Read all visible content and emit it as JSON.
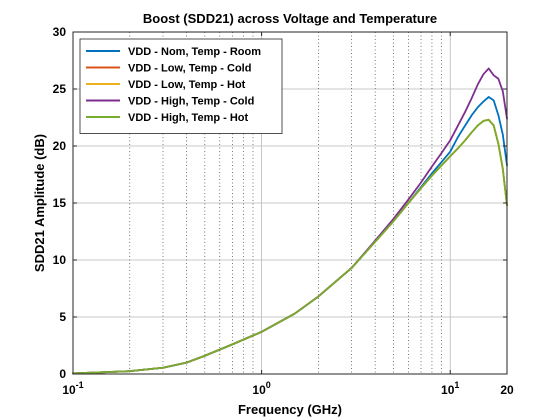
{
  "chart_data": {
    "type": "line",
    "title": "Boost (SDD21) across Voltage and Temperature",
    "xlabel": "Frequency (GHz)",
    "ylabel": "SDD21 Amplitude (dB)",
    "xscale": "log",
    "xlim": [
      0.1,
      20
    ],
    "ylim": [
      0,
      30
    ],
    "x_ticks": [
      {
        "value": 0.1,
        "base": "10",
        "exp": "-1"
      },
      {
        "value": 1,
        "base": "10",
        "exp": "0"
      },
      {
        "value": 10,
        "base": "10",
        "exp": "1"
      },
      {
        "value": 20,
        "base": "20",
        "exp": ""
      }
    ],
    "y_ticks": [
      0,
      5,
      10,
      15,
      20,
      25,
      30
    ],
    "grid": "x-minor dotted, y-major solid",
    "legend_position": "top-left",
    "x": [
      0.1,
      0.2,
      0.3,
      0.4,
      0.5,
      0.7,
      1,
      1.5,
      2,
      3,
      4,
      5,
      6,
      7,
      8,
      9,
      10,
      11,
      12,
      13,
      14,
      15,
      16,
      17,
      18,
      19,
      20
    ],
    "series": [
      {
        "name": "VDD - Nom, Temp - Room",
        "color": "#0072bd",
        "values": [
          0.05,
          0.25,
          0.55,
          1.0,
          1.6,
          2.6,
          3.7,
          5.3,
          6.8,
          9.3,
          11.6,
          13.4,
          15.0,
          16.4,
          17.6,
          18.6,
          19.5,
          20.8,
          21.8,
          22.7,
          23.4,
          23.9,
          24.3,
          24.0,
          22.7,
          21.0,
          18.3
        ]
      },
      {
        "name": "VDD - Low, Temp - Cold",
        "color": "#d95319",
        "values": [
          0.05,
          0.25,
          0.55,
          1.0,
          1.6,
          2.6,
          3.7,
          5.3,
          6.8,
          9.3,
          11.6,
          13.4,
          15.0,
          16.3,
          17.4,
          18.3,
          19.1,
          19.8,
          20.5,
          21.2,
          21.8,
          22.2,
          22.3,
          21.8,
          20.2,
          18.0,
          14.8
        ]
      },
      {
        "name": "VDD - Low, Temp - Hot",
        "color": "#edb120",
        "values": [
          0.05,
          0.25,
          0.55,
          1.0,
          1.6,
          2.6,
          3.7,
          5.3,
          6.8,
          9.3,
          11.6,
          13.4,
          15.0,
          16.3,
          17.4,
          18.3,
          19.1,
          19.8,
          20.5,
          21.2,
          21.8,
          22.2,
          22.3,
          21.8,
          20.2,
          18.0,
          14.8
        ]
      },
      {
        "name": "VDD - High, Temp - Cold",
        "color": "#7e2f8e",
        "values": [
          0.05,
          0.25,
          0.55,
          1.0,
          1.6,
          2.6,
          3.7,
          5.3,
          6.8,
          9.3,
          11.7,
          13.6,
          15.3,
          16.8,
          18.2,
          19.4,
          20.5,
          21.8,
          23.0,
          24.2,
          25.4,
          26.3,
          26.8,
          26.2,
          25.9,
          24.8,
          22.4
        ]
      },
      {
        "name": "VDD - High, Temp - Hot",
        "color": "#77ac30",
        "values": [
          0.05,
          0.25,
          0.55,
          1.0,
          1.6,
          2.6,
          3.7,
          5.3,
          6.8,
          9.3,
          11.6,
          13.4,
          15.0,
          16.3,
          17.4,
          18.3,
          19.1,
          19.8,
          20.5,
          21.2,
          21.8,
          22.2,
          22.3,
          21.8,
          20.2,
          18.0,
          14.8
        ]
      }
    ]
  }
}
